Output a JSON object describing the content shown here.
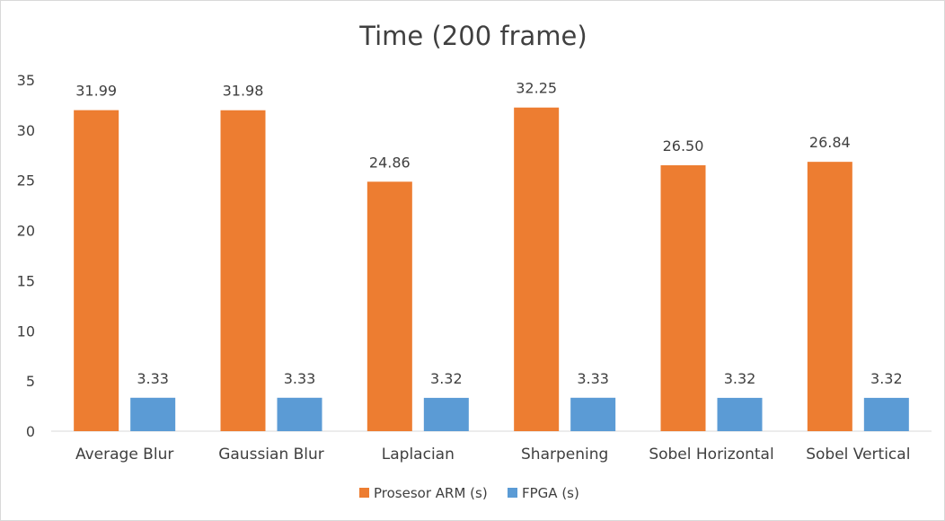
{
  "chart_data": {
    "type": "bar",
    "title": "Time (200 frame)",
    "xlabel": "",
    "ylabel": "",
    "ylim": [
      0,
      35
    ],
    "yticks": [
      "0",
      "5",
      "10",
      "15",
      "20",
      "25",
      "30",
      "35"
    ],
    "grid": false,
    "legend_position": "bottom",
    "categories": [
      "Average Blur",
      "Gaussian Blur",
      "Laplacian",
      "Sharpening",
      "Sobel Horizontal",
      "Sobel Vertical"
    ],
    "series": [
      {
        "name": "Prosesor ARM (s)",
        "color": "#ed7d31",
        "values": [
          31.99,
          31.98,
          24.86,
          32.25,
          26.5,
          26.84
        ],
        "labels": [
          "31.99",
          "31.98",
          "24.86",
          "32.25",
          "26.50",
          "26.84"
        ]
      },
      {
        "name": "FPGA (s)",
        "color": "#5b9bd5",
        "values": [
          3.33,
          3.33,
          3.32,
          3.33,
          3.32,
          3.32
        ],
        "labels": [
          "3.33",
          "3.33",
          "3.32",
          "3.33",
          "3.32",
          "3.32"
        ]
      }
    ]
  }
}
